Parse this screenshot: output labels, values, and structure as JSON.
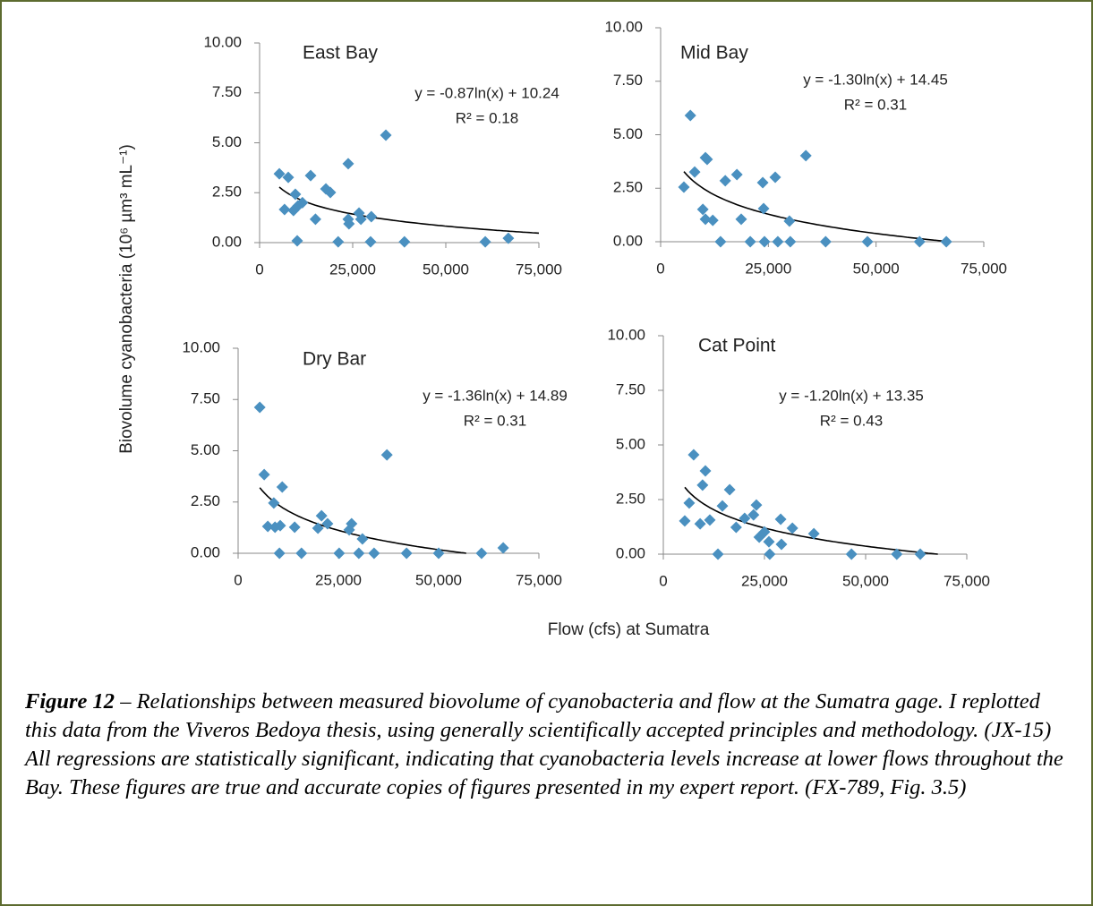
{
  "chart_data": [
    {
      "type": "scatter",
      "title": "East Bay",
      "equation": "y = -0.87ln(x) + 10.24",
      "r_squared": "R² = 0.18",
      "trendline": {
        "slope": -0.87,
        "intercept": 10.24
      },
      "color": "#4a90c0",
      "x": [
        5300,
        7700,
        6700,
        9100,
        9600,
        10300,
        11500,
        10100,
        13700,
        15000,
        17800,
        19000,
        21100,
        23800,
        23800,
        24000,
        26700,
        27200,
        30000,
        29800,
        33900,
        38900,
        60600,
        66800
      ],
      "values": [
        3.45,
        3.27,
        1.66,
        1.61,
        2.42,
        1.84,
        2.0,
        0.09,
        3.36,
        1.17,
        2.69,
        2.51,
        0.04,
        3.95,
        1.17,
        0.94,
        1.48,
        1.17,
        1.3,
        0.04,
        5.38,
        0.04,
        0.04,
        0.22
      ],
      "xlim": [
        0,
        75000
      ],
      "xticks": [
        0,
        {
          "value": 25000,
          "label": "25,000"
        },
        {
          "value": 50000,
          "label": "50,000"
        },
        {
          "value": 75000,
          "label": "75,000"
        }
      ],
      "ylim": [
        0,
        10
      ],
      "yticks": [
        {
          "value": 0,
          "label": "0.00"
        },
        {
          "value": 2.5,
          "label": "2.50"
        },
        {
          "value": 5,
          "label": "5.00"
        },
        {
          "value": 7.5,
          "label": "7.50"
        },
        {
          "value": 10,
          "label": "10.00"
        }
      ]
    },
    {
      "type": "scatter",
      "title": "Mid Bay",
      "equation": "y = -1.30ln(x) + 14.45",
      "r_squared": "R² = 0.31",
      "trendline": {
        "slope": -1.3,
        "intercept": 14.45
      },
      "color": "#4a90c0",
      "x": [
        5400,
        6900,
        7900,
        9800,
        10400,
        10800,
        10400,
        12100,
        13900,
        15000,
        17700,
        18700,
        20800,
        23700,
        23900,
        24100,
        26600,
        27200,
        29900,
        30100,
        33700,
        38300,
        48000,
        60100,
        66300
      ],
      "values": [
        2.55,
        5.9,
        3.26,
        1.51,
        3.93,
        3.85,
        1.05,
        1.0,
        0,
        2.85,
        3.14,
        1.05,
        0,
        2.76,
        1.55,
        0,
        3.01,
        0,
        0.96,
        0,
        4.02,
        0,
        0,
        0,
        0
      ],
      "xlim": [
        0,
        75000
      ],
      "xticks": [
        0,
        {
          "value": 25000,
          "label": "25,000"
        },
        {
          "value": 50000,
          "label": "50,000"
        },
        {
          "value": 75000,
          "label": "75,000"
        }
      ],
      "ylim": [
        0,
        10
      ],
      "yticks": [
        {
          "value": 0,
          "label": "0.00"
        },
        {
          "value": 2.5,
          "label": "2.50"
        },
        {
          "value": 5,
          "label": "5.00"
        },
        {
          "value": 7.5,
          "label": "7.50"
        },
        {
          "value": 10,
          "label": "10.00"
        }
      ]
    },
    {
      "type": "scatter",
      "title": "Dry Bar",
      "equation": "y = -1.36ln(x) + 14.89",
      "r_squared": "R² = 0.31",
      "trendline": {
        "slope": -1.36,
        "intercept": 14.89
      },
      "color": "#4a90c0",
      "x": [
        5400,
        6500,
        7400,
        9200,
        8900,
        10500,
        11000,
        10300,
        14100,
        15800,
        19900,
        20800,
        22300,
        25200,
        27700,
        28300,
        30100,
        31000,
        33900,
        37100,
        42000,
        50000,
        60700,
        66100
      ],
      "values": [
        7.12,
        3.84,
        1.31,
        1.27,
        2.45,
        1.35,
        3.23,
        0,
        1.27,
        0,
        1.22,
        1.83,
        1.44,
        0,
        1.14,
        1.44,
        0,
        0.7,
        0,
        4.8,
        0,
        0,
        0,
        0.26
      ],
      "xlim": [
        0,
        75000
      ],
      "xticks": [
        0,
        {
          "value": 25000,
          "label": "25,000"
        },
        {
          "value": 50000,
          "label": "50,000"
        },
        {
          "value": 75000,
          "label": "75,000"
        }
      ],
      "ylim": [
        0,
        10
      ],
      "yticks": [
        {
          "value": 0,
          "label": "0.00"
        },
        {
          "value": 2.5,
          "label": "2.50"
        },
        {
          "value": 5,
          "label": "5.00"
        },
        {
          "value": 7.5,
          "label": "7.50"
        },
        {
          "value": 10,
          "label": "10.00"
        }
      ]
    },
    {
      "type": "scatter",
      "title": "Cat Point",
      "equation": "y = -1.20ln(x) + 13.35",
      "r_squared": "R² = 0.43",
      "trendline": {
        "slope": -1.2,
        "intercept": 13.35
      },
      "color": "#4a90c0",
      "x": [
        5300,
        6400,
        7500,
        9100,
        9700,
        10400,
        11500,
        13500,
        14600,
        16400,
        18000,
        20100,
        22300,
        23000,
        23700,
        25000,
        26100,
        26300,
        29000,
        29200,
        31900,
        37200,
        46500,
        57700,
        63500
      ],
      "values": [
        1.52,
        2.34,
        4.55,
        1.39,
        3.16,
        3.81,
        1.56,
        0,
        2.21,
        2.95,
        1.23,
        1.64,
        1.8,
        2.25,
        0.78,
        1.02,
        0.57,
        0,
        1.6,
        0.45,
        1.19,
        0.94,
        0,
        0,
        0
      ],
      "xlim": [
        0,
        75000
      ],
      "xticks": [
        0,
        {
          "value": 25000,
          "label": "25,000"
        },
        {
          "value": 50000,
          "label": "50,000"
        },
        {
          "value": 75000,
          "label": "75,000"
        }
      ],
      "ylim": [
        0,
        10
      ],
      "yticks": [
        {
          "value": 0,
          "label": "0.00"
        },
        {
          "value": 2.5,
          "label": "2.50"
        },
        {
          "value": 5,
          "label": "5.00"
        },
        {
          "value": 7.5,
          "label": "7.50"
        },
        {
          "value": 10,
          "label": "10.00"
        }
      ]
    }
  ],
  "y_label": "Biovolume cyanobacteria (10⁶ µm³ mL⁻¹)",
  "x_label": "Flow (cfs) at Sumatra",
  "caption": {
    "label": "Figure 12",
    "text": "– Relationships between measured biovolume of cyanobacteria and flow at the Sumatra gage.  I replotted this data from the Viveros Bedoya thesis, using generally scientifically accepted principles and methodology.  (JX-15)  All regressions are statistically significant, indicating that cyanobacteria levels increase at lower flows throughout the Bay. These figures are true and accurate copies of figures presented in my expert report. (FX-789, Fig. 3.5)"
  }
}
